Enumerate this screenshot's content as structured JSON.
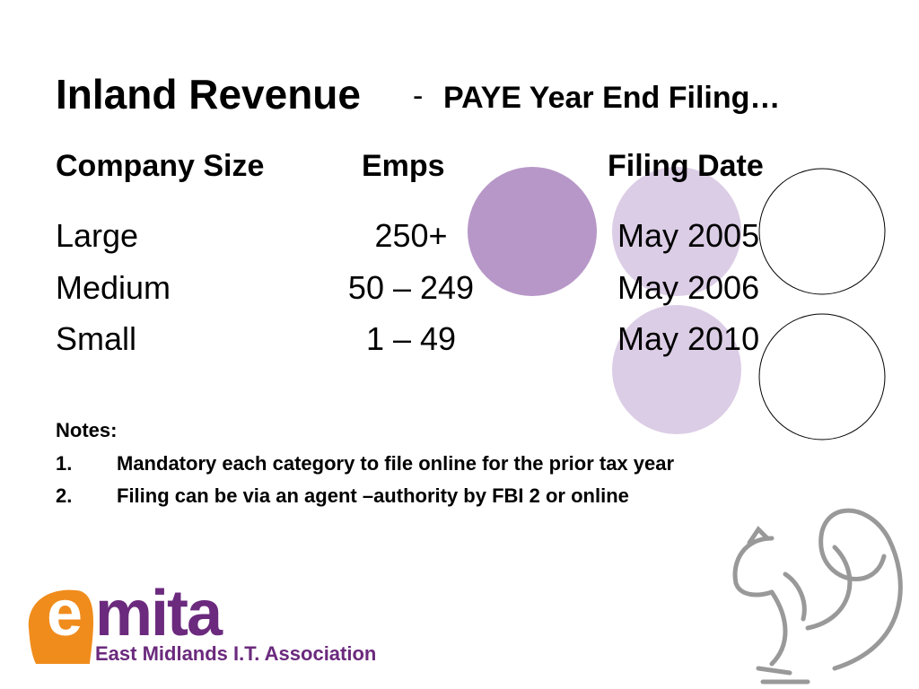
{
  "title": {
    "main": "Inland Revenue",
    "separator": "-",
    "sub": "PAYE Year End Filing…"
  },
  "table": {
    "headers": [
      "Company Size",
      "Emps",
      "Filing Date"
    ],
    "rows": [
      [
        "Large",
        "250+",
        "May 2005"
      ],
      [
        "Medium",
        "50 – 249",
        "May 2006"
      ],
      [
        "Small",
        "1 – 49",
        "May 2010"
      ]
    ]
  },
  "notes": {
    "heading": "Notes:",
    "items": [
      {
        "number": "1.",
        "text": "Mandatory each category to file online for the prior tax year"
      },
      {
        "number": "2.",
        "text": "Filing can be via an agent –authority by FBI 2 or online"
      }
    ]
  },
  "logo": {
    "mark": "e",
    "name": "mita",
    "tagline": "East Midlands I.T. Association"
  }
}
